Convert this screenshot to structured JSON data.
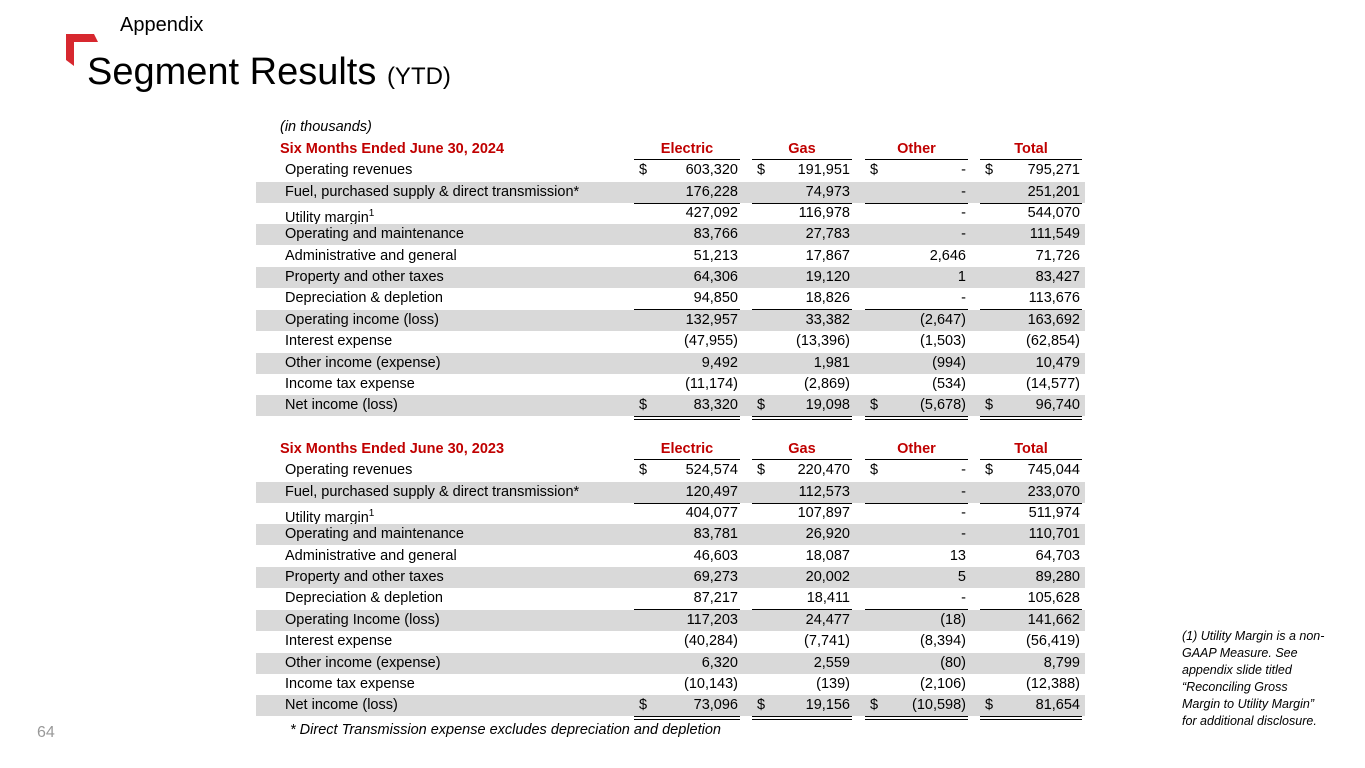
{
  "header": {
    "section": "Appendix",
    "title": "Segment Results",
    "title_suffix": "(YTD)"
  },
  "units_note": "(in thousands)",
  "tables": [
    {
      "heading": "Six Months Ended June 30,  2024",
      "columns": [
        "Electric",
        "Gas",
        "Other",
        "Total"
      ],
      "rows": [
        {
          "label": "Operating revenues",
          "currency": "$",
          "cells": [
            "603,320",
            "191,951",
            "-",
            "795,271"
          ]
        },
        {
          "label": "Fuel, purchased supply & direct transmission*",
          "cells": [
            "176,228",
            "74,973",
            "-",
            "251,201"
          ]
        },
        {
          "label": "Utility margin",
          "footnote_ref": "1",
          "cells": [
            "427,092",
            "116,978",
            "-",
            "544,070"
          ]
        },
        {
          "label": "Operating and maintenance",
          "cells": [
            "83,766",
            "27,783",
            "-",
            "111,549"
          ]
        },
        {
          "label": "Administrative and general",
          "cells": [
            "51,213",
            "17,867",
            "2,646",
            "71,726"
          ]
        },
        {
          "label": "Property and other taxes",
          "cells": [
            "64,306",
            "19,120",
            "1",
            "83,427"
          ]
        },
        {
          "label": "Depreciation & depletion",
          "cells": [
            "94,850",
            "18,826",
            "-",
            "113,676"
          ]
        },
        {
          "label": "Operating income (loss)",
          "cells": [
            "132,957",
            "33,382",
            "(2,647)",
            "163,692"
          ]
        },
        {
          "label": "Interest expense",
          "cells": [
            "(47,955)",
            "(13,396)",
            "(1,503)",
            "(62,854)"
          ]
        },
        {
          "label": "Other income (expense)",
          "cells": [
            "9,492",
            "1,981",
            "(994)",
            "10,479"
          ]
        },
        {
          "label": "Income tax expense",
          "cells": [
            "(11,174)",
            "(2,869)",
            "(534)",
            "(14,577)"
          ]
        },
        {
          "label": "Net income (loss)",
          "currency": "$",
          "cells": [
            "83,320",
            "19,098",
            "(5,678)",
            "96,740"
          ]
        }
      ]
    },
    {
      "heading": "Six Months Ended June 30,  2023",
      "columns": [
        "Electric",
        "Gas",
        "Other",
        "Total"
      ],
      "rows": [
        {
          "label": "Operating revenues",
          "currency": "$",
          "cells": [
            "524,574",
            "220,470",
            "-",
            "745,044"
          ]
        },
        {
          "label": "Fuel, purchased supply & direct transmission*",
          "cells": [
            "120,497",
            "112,573",
            "-",
            "233,070"
          ]
        },
        {
          "label": "Utility margin",
          "footnote_ref": "1",
          "cells": [
            "404,077",
            "107,897",
            "-",
            "511,974"
          ]
        },
        {
          "label": "Operating and maintenance",
          "cells": [
            "83,781",
            "26,920",
            "-",
            "110,701"
          ]
        },
        {
          "label": "Administrative and general",
          "cells": [
            "46,603",
            "18,087",
            "13",
            "64,703"
          ]
        },
        {
          "label": "Property and other taxes",
          "cells": [
            "69,273",
            "20,002",
            "5",
            "89,280"
          ]
        },
        {
          "label": "Depreciation & depletion",
          "cells": [
            "87,217",
            "18,411",
            "-",
            "105,628"
          ]
        },
        {
          "label": "Operating Income (loss)",
          "cells": [
            "117,203",
            "24,477",
            "(18)",
            "141,662"
          ]
        },
        {
          "label": "Interest expense",
          "cells": [
            "(40,284)",
            "(7,741)",
            "(8,394)",
            "(56,419)"
          ]
        },
        {
          "label": "Other income (expense)",
          "cells": [
            "6,320",
            "2,559",
            "(80)",
            "8,799"
          ]
        },
        {
          "label": "Income tax expense",
          "cells": [
            "(10,143)",
            "(139)",
            "(2,106)",
            "(12,388)"
          ]
        },
        {
          "label": "Net income (loss)",
          "currency": "$",
          "cells": [
            "73,096",
            "19,156",
            "(10,598)",
            "81,654"
          ]
        }
      ]
    }
  ],
  "footnote": "* Direct Transmission expense excludes depreciation and depletion",
  "side_note": "(1) Utility Margin is a non-GAAP Measure. See appendix slide titled “Reconciling Gross Margin to Utility Margin” for additional disclosure.",
  "page_number": "64"
}
